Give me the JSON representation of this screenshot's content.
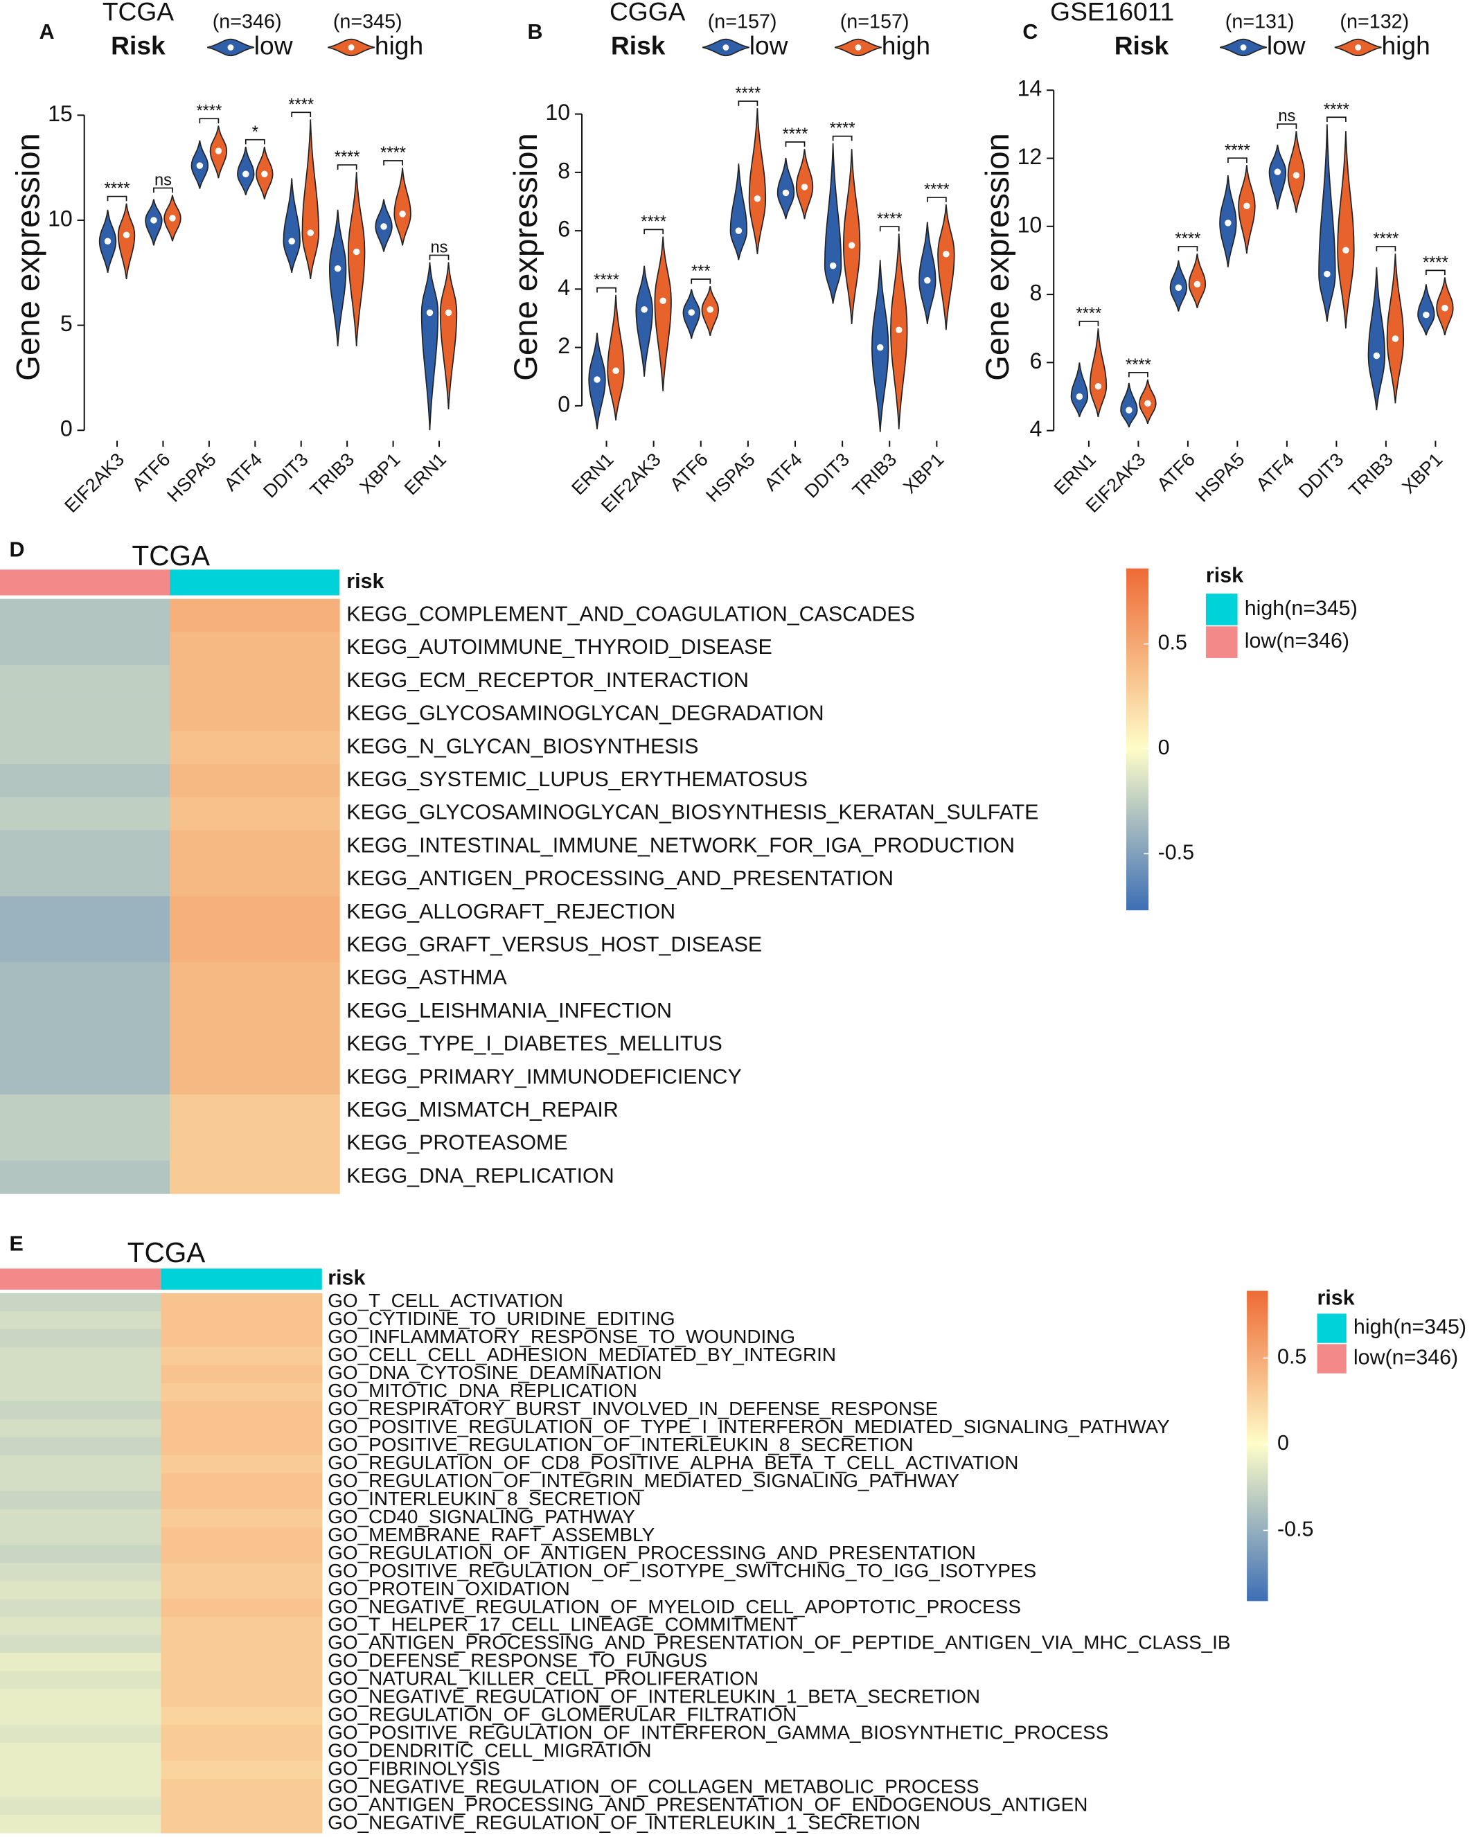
{
  "chart_data": [
    {
      "type": "violin",
      "panel": "A",
      "title": "TCGA",
      "legend_title": "Risk",
      "ylabel": "Gene expression",
      "categories": [
        "EIF2AK3",
        "ATF6",
        "HSPA5",
        "ATF4",
        "DDIT3",
        "TRIB3",
        "XBP1",
        "ERN1"
      ],
      "series": [
        {
          "name": "low",
          "n_label": "(n=346)",
          "color": "#2f5fa8",
          "values": [
            9.0,
            10.0,
            12.6,
            12.2,
            9.0,
            7.7,
            9.7,
            5.6
          ],
          "mins": [
            7.5,
            8.8,
            11.5,
            11.2,
            7.5,
            4.0,
            8.5,
            0.0
          ],
          "maxs": [
            10.5,
            11.0,
            13.8,
            13.5,
            12.0,
            10.5,
            11.0,
            8.0
          ]
        },
        {
          "name": "high",
          "n_label": "(n=345)",
          "color": "#e8622c",
          "values": [
            9.3,
            10.1,
            13.3,
            12.2,
            9.4,
            8.5,
            10.3,
            5.6
          ],
          "mins": [
            7.2,
            9.0,
            12.0,
            11.0,
            7.2,
            4.0,
            8.8,
            1.0
          ],
          "maxs": [
            10.8,
            11.2,
            14.5,
            13.5,
            14.8,
            12.3,
            12.5,
            8.0
          ]
        }
      ],
      "annotations": [
        "****",
        "ns",
        "****",
        "*",
        "****",
        "****",
        "****",
        "ns"
      ],
      "ylim": [
        -0.5,
        17
      ],
      "yticks": [
        0,
        5,
        10,
        15
      ]
    },
    {
      "type": "violin",
      "panel": "B",
      "title": "CGGA",
      "legend_title": "Risk",
      "ylabel": "Gene expression",
      "categories": [
        "ERN1",
        "EIF2AK3",
        "ATF6",
        "HSPA5",
        "ATF4",
        "DDIT3",
        "TRIB3",
        "XBP1"
      ],
      "series": [
        {
          "name": "low",
          "n_label": "(n=157)",
          "color": "#2f5fa8",
          "values": [
            0.9,
            3.3,
            3.2,
            6.0,
            7.3,
            4.8,
            2.0,
            4.3
          ],
          "mins": [
            -0.8,
            1.0,
            2.3,
            5.0,
            6.4,
            3.5,
            -0.9,
            2.8
          ],
          "maxs": [
            2.5,
            4.8,
            4.0,
            8.3,
            8.5,
            9.0,
            5.0,
            6.3
          ]
        },
        {
          "name": "high",
          "n_label": "(n=157)",
          "color": "#e8622c",
          "values": [
            1.2,
            3.6,
            3.3,
            7.1,
            7.5,
            5.5,
            2.6,
            5.2
          ],
          "mins": [
            -0.5,
            0.5,
            2.4,
            5.2,
            6.4,
            2.8,
            -0.8,
            2.6
          ],
          "maxs": [
            3.8,
            5.8,
            4.1,
            10.2,
            8.8,
            8.8,
            5.9,
            6.9
          ]
        }
      ],
      "annotations": [
        "****",
        "****",
        "***",
        "****",
        "****",
        "****",
        "****",
        "****"
      ],
      "ylim": [
        -1.2,
        11.4
      ],
      "yticks": [
        0,
        2,
        4,
        6,
        8,
        10
      ]
    },
    {
      "type": "violin",
      "panel": "C",
      "title": "GSE16011",
      "legend_title": "Risk",
      "ylabel": "Gene expression",
      "categories": [
        "ERN1",
        "EIF2AK3",
        "ATF6",
        "HSPA5",
        "ATF4",
        "DDIT3",
        "TRIB3",
        "XBP1"
      ],
      "series": [
        {
          "name": "low",
          "n_label": "(n=131)",
          "color": "#2f5fa8",
          "values": [
            5.0,
            4.6,
            8.2,
            10.1,
            11.6,
            8.6,
            6.2,
            7.4
          ],
          "mins": [
            4.4,
            4.1,
            7.5,
            8.8,
            10.5,
            7.2,
            4.6,
            6.8
          ],
          "maxs": [
            6.0,
            5.4,
            9.0,
            11.5,
            12.4,
            13.0,
            8.8,
            8.3
          ]
        },
        {
          "name": "high",
          "n_label": "(n=132)",
          "color": "#e8622c",
          "values": [
            5.3,
            4.8,
            8.3,
            10.6,
            11.5,
            9.3,
            6.7,
            7.6
          ],
          "mins": [
            4.4,
            4.2,
            7.6,
            9.2,
            10.4,
            7.0,
            4.8,
            6.8
          ],
          "maxs": [
            7.0,
            5.5,
            9.2,
            11.8,
            12.8,
            12.8,
            9.2,
            8.5
          ]
        }
      ],
      "annotations": [
        "****",
        "****",
        "****",
        "****",
        "ns",
        "****",
        "****",
        "****"
      ],
      "ylim": [
        3.7,
        14.5
      ],
      "yticks": [
        4,
        6,
        8,
        10,
        12,
        14
      ]
    },
    {
      "type": "heatmap",
      "panel": "D",
      "title": "TCGA",
      "annotation_label": "risk",
      "legend_title": "risk",
      "groups": [
        {
          "label": "low(n=346)",
          "color": "#f4898a"
        },
        {
          "label": "high(n=345)",
          "color": "#00d2da"
        }
      ],
      "rows": [
        "KEGG_COMPLEMENT_AND_COAGULATION_CASCADES",
        "KEGG_AUTOIMMUNE_THYROID_DISEASE",
        "KEGG_ECM_RECEPTOR_INTERACTION",
        "KEGG_GLYCOSAMINOGLYCAN_DEGRADATION",
        "KEGG_N_GLYCAN_BIOSYNTHESIS",
        "KEGG_SYSTEMIC_LUPUS_ERYTHEMATOSUS",
        "KEGG_GLYCOSAMINOGLYCAN_BIOSYNTHESIS_KERATAN_SULFATE",
        "KEGG_INTESTINAL_IMMUNE_NETWORK_FOR_IGA_PRODUCTION",
        "KEGG_ANTIGEN_PROCESSING_AND_PRESENTATION",
        "KEGG_ALLOGRAFT_REJECTION",
        "KEGG_GRAFT_VERSUS_HOST_DISEASE",
        "KEGG_ASTHMA",
        "KEGG_LEISHMANIA_INFECTION",
        "KEGG_TYPE_I_DIABETES_MELLITUS",
        "KEGG_PRIMARY_IMMUNODEFICIENCY",
        "KEGG_MISMATCH_REPAIR",
        "KEGG_PROTEASOME",
        "KEGG_DNA_REPLICATION"
      ],
      "values": [
        [
          -0.3,
          0.45
        ],
        [
          -0.3,
          0.4
        ],
        [
          -0.25,
          0.4
        ],
        [
          -0.25,
          0.4
        ],
        [
          -0.25,
          0.35
        ],
        [
          -0.3,
          0.4
        ],
        [
          -0.25,
          0.35
        ],
        [
          -0.3,
          0.4
        ],
        [
          -0.3,
          0.4
        ],
        [
          -0.4,
          0.45
        ],
        [
          -0.4,
          0.45
        ],
        [
          -0.35,
          0.4
        ],
        [
          -0.35,
          0.4
        ],
        [
          -0.35,
          0.4
        ],
        [
          -0.35,
          0.4
        ],
        [
          -0.25,
          0.3
        ],
        [
          -0.25,
          0.3
        ],
        [
          -0.3,
          0.3
        ]
      ],
      "clim": [
        -0.77,
        0.86
      ],
      "cticks": [
        0.5,
        0,
        -0.5
      ],
      "colors": [
        "#3d6eb5",
        "#fefdc8",
        "#ee6a35"
      ]
    },
    {
      "type": "heatmap",
      "panel": "E",
      "title": "TCGA",
      "annotation_label": "risk",
      "legend_title": "risk",
      "groups": [
        {
          "label": "low(n=346)",
          "color": "#f4898a"
        },
        {
          "label": "high(n=345)",
          "color": "#00d2da"
        }
      ],
      "rows": [
        "GO_T_CELL_ACTIVATION",
        "GO_CYTIDINE_TO_URIDINE_EDITING",
        "GO_INFLAMMATORY_RESPONSE_TO_WOUNDING",
        "GO_CELL_CELL_ADHESION_MEDIATED_BY_INTEGRIN",
        "GO_DNA_CYTOSINE_DEAMINATION",
        "GO_MITOTIC_DNA_REPLICATION",
        "GO_RESPIRATORY_BURST_INVOLVED_IN_DEFENSE_RESPONSE",
        "GO_POSITIVE_REGULATION_OF_TYPE_I_INTERFERON_MEDIATED_SIGNALING_PATHWAY",
        "GO_POSITIVE_REGULATION_OF_INTERLEUKIN_8_SECRETION",
        "GO_REGULATION_OF_CD8_POSITIVE_ALPHA_BETA_T_CELL_ACTIVATION",
        "GO_REGULATION_OF_INTEGRIN_MEDIATED_SIGNALING_PATHWAY",
        "GO_INTERLEUKIN_8_SECRETION",
        "GO_CD40_SIGNALING_PATHWAY",
        "GO_MEMBRANE_RAFT_ASSEMBLY",
        "GO_REGULATION_OF_ANTIGEN_PROCESSING_AND_PRESENTATION",
        "GO_POSITIVE_REGULATION_OF_ISOTYPE_SWITCHING_TO_IGG_ISOTYPES",
        "GO_PROTEIN_OXIDATION",
        "GO_NEGATIVE_REGULATION_OF_MYELOID_CELL_APOPTOTIC_PROCESS",
        "GO_T_HELPER_17_CELL_LINEAGE_COMMITMENT",
        "GO_ANTIGEN_PROCESSING_AND_PRESENTATION_OF_PEPTIDE_ANTIGEN_VIA_MHC_CLASS_IB",
        "GO_DEFENSE_RESPONSE_TO_FUNGUS",
        "GO_NATURAL_KILLER_CELL_PROLIFERATION",
        "GO_NEGATIVE_REGULATION_OF_INTERLEUKIN_1_BETA_SECRETION",
        "GO_REGULATION_OF_GLOMERULAR_FILTRATION",
        "GO_POSITIVE_REGULATION_OF_INTERFERON_GAMMA_BIOSYNTHETIC_PROCESS",
        "GO_DENDRITIC_CELL_MIGRATION",
        "GO_FIBRINOLYSIS",
        "GO_NEGATIVE_REGULATION_OF_COLLAGEN_METABOLIC_PROCESS",
        "GO_ANTIGEN_PROCESSING_AND_PRESENTATION_OF_ENDOGENOUS_ANTIGEN",
        "GO_NEGATIVE_REGULATION_OF_INTERLEUKIN_1_SECRETION"
      ],
      "values": [
        [
          -0.25,
          0.35
        ],
        [
          -0.2,
          0.35
        ],
        [
          -0.25,
          0.35
        ],
        [
          -0.2,
          0.3
        ],
        [
          -0.2,
          0.35
        ],
        [
          -0.2,
          0.3
        ],
        [
          -0.25,
          0.35
        ],
        [
          -0.2,
          0.35
        ],
        [
          -0.25,
          0.35
        ],
        [
          -0.2,
          0.3
        ],
        [
          -0.2,
          0.35
        ],
        [
          -0.25,
          0.35
        ],
        [
          -0.2,
          0.3
        ],
        [
          -0.2,
          0.35
        ],
        [
          -0.25,
          0.35
        ],
        [
          -0.2,
          0.3
        ],
        [
          -0.15,
          0.3
        ],
        [
          -0.2,
          0.35
        ],
        [
          -0.15,
          0.3
        ],
        [
          -0.2,
          0.3
        ],
        [
          -0.1,
          0.3
        ],
        [
          -0.15,
          0.3
        ],
        [
          -0.1,
          0.3
        ],
        [
          -0.1,
          0.25
        ],
        [
          -0.15,
          0.3
        ],
        [
          -0.1,
          0.3
        ],
        [
          -0.1,
          0.25
        ],
        [
          -0.1,
          0.3
        ],
        [
          -0.15,
          0.3
        ],
        [
          -0.1,
          0.3
        ]
      ],
      "clim": [
        -0.91,
        0.89
      ],
      "cticks": [
        0.5,
        0,
        -0.5
      ],
      "colors": [
        "#3d6eb5",
        "#fefdc8",
        "#ee6a35"
      ]
    }
  ]
}
